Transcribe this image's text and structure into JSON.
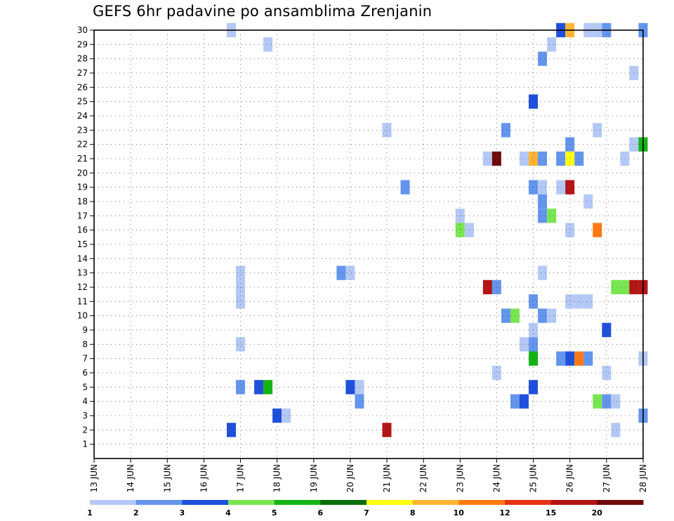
{
  "chart_data": {
    "type": "heatmap",
    "title": "GEFS 6hr padavine po ansamblima Zrenjanin",
    "xlabel": "",
    "ylabel": "",
    "x_tick_labels": [
      "13 JUN",
      "14 JUN",
      "15 JUN",
      "16 JUN",
      "17 JUN",
      "18 JUN",
      "19 JUN",
      "20 JUN",
      "21 JUN",
      "22 JUN",
      "23 JUN",
      "24 JUN",
      "25 JUN",
      "26 JUN",
      "27 JUN",
      "28 JUN"
    ],
    "y_tick_labels": [
      "1",
      "2",
      "3",
      "4",
      "5",
      "6",
      "7",
      "8",
      "9",
      "10",
      "11",
      "12",
      "13",
      "14",
      "15",
      "16",
      "17",
      "18",
      "19",
      "20",
      "21",
      "22",
      "23",
      "24",
      "25",
      "26",
      "27",
      "28",
      "29",
      "30"
    ],
    "xlim_days": [
      13,
      28
    ],
    "ylim": [
      0,
      30
    ],
    "grid": true,
    "colorbar": {
      "position": "bottom",
      "bounds": [
        "1",
        "2",
        "3",
        "4",
        "5",
        "6",
        "7",
        "8",
        "10",
        "12",
        "15",
        "20"
      ],
      "colors": [
        "#b4c8f5",
        "#6495ed",
        "#1e50dc",
        "#78e650",
        "#14b414",
        "#0a6e0a",
        "#ffff14",
        "#ffb432",
        "#ff7814",
        "#e63214",
        "#b41414",
        "#6e0a0a"
      ]
    },
    "cells_note": "each cell: [day (center, in days of June), member (1-30), color class index 0-11 matching colorbar intervals]",
    "cells": [
      [
        16.75,
        2,
        2
      ],
      [
        16.75,
        30,
        0
      ],
      [
        17.0,
        5,
        1
      ],
      [
        17.0,
        8,
        0
      ],
      [
        17.0,
        11,
        0
      ],
      [
        17.0,
        12,
        0
      ],
      [
        17.0,
        13,
        0
      ],
      [
        17.5,
        5,
        2
      ],
      [
        17.75,
        5,
        4
      ],
      [
        17.75,
        29,
        0
      ],
      [
        18.0,
        3,
        2
      ],
      [
        18.25,
        3,
        0
      ],
      [
        19.75,
        13,
        1
      ],
      [
        20.0,
        13,
        0
      ],
      [
        20.0,
        5,
        2
      ],
      [
        20.25,
        5,
        0
      ],
      [
        20.25,
        4,
        1
      ],
      [
        21.0,
        2,
        10
      ],
      [
        21.0,
        23,
        0
      ],
      [
        21.5,
        19,
        1
      ],
      [
        23.0,
        16,
        3
      ],
      [
        23.0,
        17,
        0
      ],
      [
        23.25,
        16,
        0
      ],
      [
        23.75,
        12,
        10
      ],
      [
        23.75,
        21,
        0
      ],
      [
        24.0,
        12,
        1
      ],
      [
        24.0,
        21,
        11
      ],
      [
        24.0,
        6,
        0
      ],
      [
        24.25,
        10,
        1
      ],
      [
        24.25,
        23,
        1
      ],
      [
        24.5,
        10,
        3
      ],
      [
        24.5,
        4,
        1
      ],
      [
        24.75,
        4,
        2
      ],
      [
        24.75,
        8,
        0
      ],
      [
        24.75,
        21,
        0
      ],
      [
        25.0,
        21,
        7
      ],
      [
        25.0,
        25,
        2
      ],
      [
        25.0,
        19,
        1
      ],
      [
        25.0,
        11,
        1
      ],
      [
        25.0,
        9,
        0
      ],
      [
        25.0,
        8,
        1
      ],
      [
        25.0,
        7,
        4
      ],
      [
        25.0,
        5,
        2
      ],
      [
        25.25,
        21,
        1
      ],
      [
        25.25,
        19,
        0
      ],
      [
        25.25,
        18,
        1
      ],
      [
        25.25,
        17,
        1
      ],
      [
        25.25,
        13,
        0
      ],
      [
        25.25,
        10,
        1
      ],
      [
        25.5,
        10,
        0
      ],
      [
        25.5,
        17,
        3
      ],
      [
        25.5,
        29,
        0
      ],
      [
        25.25,
        28,
        1
      ],
      [
        25.75,
        30,
        2
      ],
      [
        25.75,
        21,
        1
      ],
      [
        25.75,
        19,
        0
      ],
      [
        25.75,
        7,
        1
      ],
      [
        26.0,
        30,
        7
      ],
      [
        26.0,
        22,
        1
      ],
      [
        26.0,
        21,
        6
      ],
      [
        26.0,
        19,
        10
      ],
      [
        26.0,
        16,
        0
      ],
      [
        26.0,
        11,
        0
      ],
      [
        26.0,
        7,
        2
      ],
      [
        26.25,
        21,
        1
      ],
      [
        26.25,
        11,
        0
      ],
      [
        26.25,
        7,
        8
      ],
      [
        26.5,
        7,
        1
      ],
      [
        26.5,
        18,
        0
      ],
      [
        26.5,
        11,
        0
      ],
      [
        26.5,
        30,
        0
      ],
      [
        26.75,
        16,
        8
      ],
      [
        26.75,
        4,
        3
      ],
      [
        26.75,
        23,
        0
      ],
      [
        26.75,
        30,
        0
      ],
      [
        27.0,
        9,
        2
      ],
      [
        27.0,
        4,
        1
      ],
      [
        27.0,
        6,
        0
      ],
      [
        27.0,
        30,
        1
      ],
      [
        27.25,
        4,
        0
      ],
      [
        27.25,
        2,
        0
      ],
      [
        27.25,
        12,
        3
      ],
      [
        27.5,
        12,
        3
      ],
      [
        27.5,
        21,
        0
      ],
      [
        27.75,
        27,
        0
      ],
      [
        27.75,
        22,
        0
      ],
      [
        27.75,
        12,
        10
      ],
      [
        28.0,
        3,
        1
      ],
      [
        28.0,
        7,
        0
      ],
      [
        28.0,
        22,
        4
      ],
      [
        28.0,
        12,
        10
      ],
      [
        28.0,
        30,
        1
      ]
    ]
  }
}
